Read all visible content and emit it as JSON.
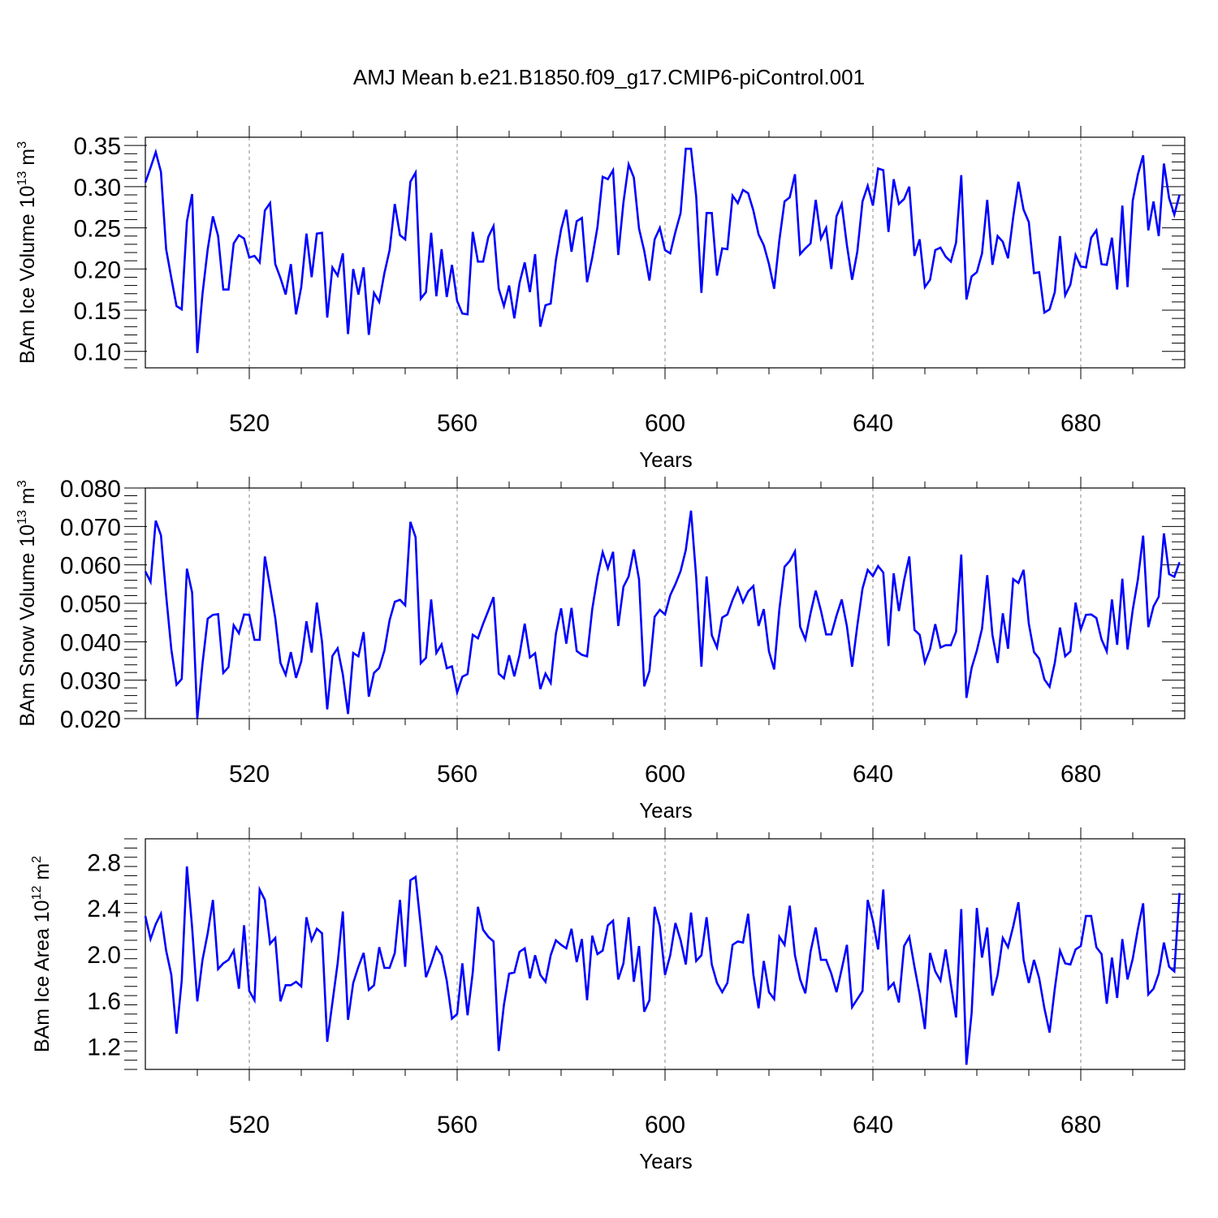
{
  "title": "AMJ Mean b.e21.B1850.f09_g17.CMIP6-piControl.001",
  "line_color": "#0000ff",
  "chart_data": [
    {
      "type": "line",
      "id": "ice-volume",
      "title": "",
      "xlabel": "Years",
      "ylabel_main": "BAm Ice Volume 10",
      "ylabel_exp": "13",
      "ylabel_unit": "m",
      "ylabel_unit_exp": "3",
      "xlim": [
        500,
        700
      ],
      "ylim": [
        0.08,
        0.36
      ],
      "xticks": [
        520,
        560,
        600,
        640,
        680
      ],
      "yticks": [
        0.1,
        0.15,
        0.2,
        0.25,
        0.3,
        0.35
      ],
      "ytick_labels": [
        "0.10",
        "0.15",
        "0.20",
        "0.25",
        "0.30",
        "0.35"
      ],
      "x_start": 500,
      "series": [
        {
          "name": "BAm Ice Volume",
          "values": [
            0.305,
            0.323,
            0.342,
            0.318,
            0.224,
            0.189,
            0.155,
            0.151,
            0.258,
            0.291,
            0.098,
            0.17,
            0.224,
            0.264,
            0.24,
            0.175,
            0.175,
            0.231,
            0.241,
            0.237,
            0.214,
            0.216,
            0.208,
            0.271,
            0.28,
            0.206,
            0.189,
            0.169,
            0.206,
            0.145,
            0.178,
            0.243,
            0.19,
            0.243,
            0.244,
            0.141,
            0.202,
            0.192,
            0.219,
            0.121,
            0.2,
            0.169,
            0.202,
            0.12,
            0.171,
            0.16,
            0.195,
            0.223,
            0.279,
            0.241,
            0.236,
            0.306,
            0.317,
            0.164,
            0.172,
            0.244,
            0.167,
            0.224,
            0.166,
            0.205,
            0.161,
            0.146,
            0.145,
            0.245,
            0.209,
            0.209,
            0.239,
            0.252,
            0.176,
            0.155,
            0.18,
            0.14,
            0.183,
            0.208,
            0.172,
            0.218,
            0.13,
            0.156,
            0.158,
            0.211,
            0.248,
            0.272,
            0.221,
            0.258,
            0.262,
            0.184,
            0.214,
            0.251,
            0.312,
            0.309,
            0.32,
            0.217,
            0.281,
            0.327,
            0.311,
            0.249,
            0.222,
            0.186,
            0.236,
            0.25,
            0.223,
            0.219,
            0.245,
            0.268,
            0.346,
            0.346,
            0.288,
            0.171,
            0.268,
            0.268,
            0.192,
            0.225,
            0.224,
            0.289,
            0.28,
            0.296,
            0.292,
            0.271,
            0.242,
            0.229,
            0.206,
            0.176,
            0.235,
            0.282,
            0.287,
            0.315,
            0.218,
            0.225,
            0.231,
            0.284,
            0.237,
            0.25,
            0.2,
            0.264,
            0.279,
            0.229,
            0.187,
            0.221,
            0.282,
            0.301,
            0.277,
            0.322,
            0.32,
            0.245,
            0.309,
            0.279,
            0.285,
            0.3,
            0.216,
            0.236,
            0.178,
            0.187,
            0.223,
            0.226,
            0.215,
            0.209,
            0.232,
            0.314,
            0.163,
            0.191,
            0.196,
            0.219,
            0.284,
            0.205,
            0.24,
            0.233,
            0.213,
            0.263,
            0.306,
            0.272,
            0.257,
            0.195,
            0.196,
            0.147,
            0.151,
            0.172,
            0.24,
            0.168,
            0.181,
            0.217,
            0.203,
            0.202,
            0.238,
            0.247,
            0.206,
            0.205,
            0.238,
            0.175,
            0.277,
            0.178,
            0.283,
            0.315,
            0.338,
            0.247,
            0.282,
            0.24,
            0.328,
            0.286,
            0.266,
            0.29
          ]
        }
      ]
    },
    {
      "type": "line",
      "id": "snow-volume",
      "title": "",
      "xlabel": "Years",
      "ylabel_main": "BAm Snow Volume 10",
      "ylabel_exp": "13",
      "ylabel_unit": "m",
      "ylabel_unit_exp": "3",
      "xlim": [
        500,
        700
      ],
      "ylim": [
        0.02,
        0.08
      ],
      "xticks": [
        520,
        560,
        600,
        640,
        680
      ],
      "yticks": [
        0.02,
        0.03,
        0.04,
        0.05,
        0.06,
        0.07,
        0.08
      ],
      "ytick_labels": [
        "0.020",
        "0.030",
        "0.040",
        "0.050",
        "0.060",
        "0.070",
        "0.080"
      ],
      "x_start": 500,
      "series": [
        {
          "name": "BAm Snow Volume",
          "values": [
            0.0583,
            0.0556,
            0.0715,
            0.0677,
            0.0521,
            0.038,
            0.0288,
            0.0303,
            0.059,
            0.0528,
            0.0201,
            0.0343,
            0.046,
            0.047,
            0.0472,
            0.0319,
            0.0334,
            0.0443,
            0.0422,
            0.0471,
            0.047,
            0.0405,
            0.0405,
            0.0622,
            0.0543,
            0.0462,
            0.0345,
            0.0314,
            0.0373,
            0.0306,
            0.0349,
            0.0453,
            0.0372,
            0.0502,
            0.0399,
            0.0224,
            0.0363,
            0.0383,
            0.0315,
            0.0212,
            0.0371,
            0.0362,
            0.0425,
            0.0257,
            0.0319,
            0.0332,
            0.0377,
            0.0456,
            0.0504,
            0.0509,
            0.0495,
            0.0712,
            0.0672,
            0.0344,
            0.0358,
            0.051,
            0.0371,
            0.0393,
            0.0331,
            0.0336,
            0.0268,
            0.0309,
            0.0316,
            0.0418,
            0.0409,
            0.0447,
            0.0481,
            0.0516,
            0.0317,
            0.0305,
            0.0365,
            0.031,
            0.0366,
            0.0447,
            0.0359,
            0.037,
            0.0277,
            0.0317,
            0.0293,
            0.0421,
            0.0487,
            0.0395,
            0.0488,
            0.0376,
            0.0366,
            0.0362,
            0.0485,
            0.0569,
            0.0633,
            0.0591,
            0.0634,
            0.0441,
            0.0543,
            0.057,
            0.064,
            0.0562,
            0.0284,
            0.0324,
            0.0465,
            0.0483,
            0.0471,
            0.0521,
            0.055,
            0.0584,
            0.0639,
            0.0741,
            0.0567,
            0.0335,
            0.057,
            0.0417,
            0.0385,
            0.0463,
            0.0471,
            0.0509,
            0.054,
            0.0503,
            0.0531,
            0.0545,
            0.0441,
            0.0485,
            0.0375,
            0.0328,
            0.0484,
            0.0595,
            0.061,
            0.0635,
            0.0439,
            0.0406,
            0.0474,
            0.0533,
            0.0481,
            0.0419,
            0.0419,
            0.0468,
            0.051,
            0.044,
            0.0335,
            0.0442,
            0.0538,
            0.0587,
            0.0571,
            0.0597,
            0.058,
            0.0389,
            0.0578,
            0.048,
            0.056,
            0.0622,
            0.0431,
            0.0418,
            0.0346,
            0.0381,
            0.0446,
            0.0385,
            0.0391,
            0.0391,
            0.0426,
            0.0627,
            0.0254,
            0.0332,
            0.0377,
            0.0434,
            0.0573,
            0.0418,
            0.0345,
            0.0474,
            0.0382,
            0.0563,
            0.0553,
            0.0587,
            0.0447,
            0.0373,
            0.0356,
            0.0302,
            0.0283,
            0.0345,
            0.0437,
            0.0362,
            0.0375,
            0.0502,
            0.0432,
            0.047,
            0.0471,
            0.0462,
            0.0406,
            0.0375,
            0.051,
            0.0392,
            0.0564,
            0.038,
            0.0483,
            0.0563,
            0.0676,
            0.0438,
            0.0492,
            0.0517,
            0.0682,
            0.0576,
            0.0569,
            0.0607
          ]
        }
      ]
    },
    {
      "type": "line",
      "id": "ice-area",
      "title": "",
      "xlabel": "Years",
      "ylabel_main": "BAm Ice Area 10",
      "ylabel_exp": "12",
      "ylabel_unit": "m",
      "ylabel_unit_exp": "2",
      "xlim": [
        500,
        700
      ],
      "ylim": [
        1.0,
        3.0
      ],
      "xticks": [
        520,
        560,
        600,
        640,
        680
      ],
      "yticks": [
        1.2,
        1.6,
        2.0,
        2.4,
        2.8
      ],
      "ytick_labels": [
        "1.2",
        "1.6",
        "2.0",
        "2.4",
        "2.8"
      ],
      "x_start": 500,
      "series": [
        {
          "name": "BAm Ice Area",
          "values": [
            2.33,
            2.13,
            2.26,
            2.35,
            2.03,
            1.82,
            1.31,
            1.77,
            2.76,
            2.23,
            1.59,
            1.95,
            2.18,
            2.47,
            1.87,
            1.92,
            1.95,
            2.03,
            1.7,
            2.25,
            1.68,
            1.6,
            2.56,
            2.47,
            2.09,
            2.14,
            1.59,
            1.73,
            1.73,
            1.76,
            1.72,
            2.32,
            2.12,
            2.22,
            2.18,
            1.24,
            1.58,
            1.92,
            2.37,
            1.43,
            1.75,
            1.89,
            2.01,
            1.69,
            1.73,
            2.06,
            1.88,
            1.88,
            2.01,
            2.47,
            1.89,
            2.64,
            2.67,
            2.24,
            1.8,
            1.92,
            2.06,
            1.99,
            1.77,
            1.44,
            1.48,
            1.92,
            1.47,
            1.84,
            2.41,
            2.21,
            2.15,
            2.11,
            1.16,
            1.56,
            1.83,
            1.84,
            2.02,
            2.05,
            1.79,
            1.99,
            1.82,
            1.76,
            1.99,
            2.12,
            2.08,
            2.05,
            2.22,
            1.93,
            2.13,
            1.6,
            2.16,
            2.0,
            2.03,
            2.25,
            2.29,
            1.78,
            1.92,
            2.32,
            1.76,
            2.07,
            1.5,
            1.6,
            2.41,
            2.24,
            1.82,
            1.99,
            2.27,
            2.12,
            1.91,
            2.36,
            1.94,
            1.99,
            2.32,
            1.91,
            1.75,
            1.67,
            1.75,
            2.08,
            2.11,
            2.1,
            2.35,
            1.82,
            1.53,
            1.94,
            1.67,
            1.61,
            2.15,
            2.08,
            2.42,
            1.99,
            1.78,
            1.66,
            2.02,
            2.23,
            1.95,
            1.95,
            1.83,
            1.67,
            1.87,
            2.08,
            1.54,
            1.61,
            1.68,
            2.47,
            2.29,
            2.04,
            2.56,
            1.7,
            1.75,
            1.58,
            2.07,
            2.15,
            1.89,
            1.65,
            1.35,
            2.01,
            1.85,
            1.77,
            2.04,
            1.74,
            1.45,
            2.39,
            1.04,
            1.49,
            2.4,
            1.97,
            2.23,
            1.64,
            1.82,
            2.14,
            2.06,
            2.24,
            2.45,
            1.95,
            1.75,
            1.95,
            1.79,
            1.53,
            1.32,
            1.7,
            2.03,
            1.92,
            1.91,
            2.04,
            2.07,
            2.33,
            2.33,
            2.06,
            2.0,
            1.57,
            1.97,
            1.62,
            2.13,
            1.78,
            1.96,
            2.22,
            2.44,
            1.65,
            1.7,
            1.83,
            2.1,
            1.89,
            1.85,
            2.53
          ]
        }
      ]
    }
  ]
}
